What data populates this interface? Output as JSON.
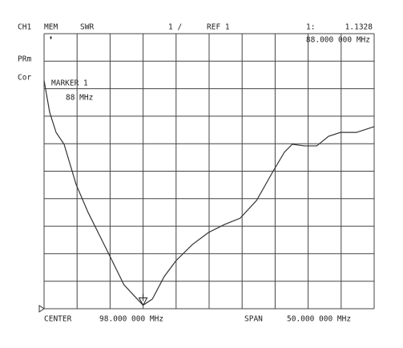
{
  "chart_data": {
    "type": "line",
    "header": {
      "channel": "CH1",
      "mode": "MEM",
      "format": "SWR",
      "scale": "1 /",
      "reference": "REF 1"
    },
    "side_labels": [
      "PRm",
      "Cor"
    ],
    "footer": {
      "center_label": "CENTER",
      "center_value": "98.000 000 MHz",
      "span_label": "SPAN",
      "span_value": "50.000 000 MHz"
    },
    "marker": {
      "number_label": "1:",
      "value": 1.1328,
      "frequency_label": "88.000 000 MHz",
      "name": "MARKER 1",
      "frequency_short": "88 MHz",
      "x": 88
    },
    "x": [
      73.0,
      73.85,
      74.82,
      76.03,
      77.85,
      79.67,
      81.5,
      83.3,
      85.1,
      87.0,
      88.0,
      89.4,
      91.2,
      93.0,
      95.45,
      97.9,
      100.3,
      102.7,
      105.2,
      107.6,
      109.4,
      110.6,
      112.4,
      114.3,
      116.1,
      117.9,
      120.3,
      123.0
    ],
    "series": [
      {
        "color": "#333333",
        "values": [
          9.3,
          8.14,
          7.41,
          6.98,
          5.52,
          4.5,
          3.62,
          2.75,
          1.87,
          1.38,
          1.13,
          1.35,
          2.17,
          2.75,
          3.33,
          3.77,
          4.06,
          4.29,
          4.94,
          5.96,
          6.69,
          6.98,
          6.92,
          6.92,
          7.27,
          7.41,
          7.41,
          7.62
        ]
      }
    ],
    "xlim": [
      73,
      123
    ],
    "ylim": [
      1,
      11
    ],
    "xticks": [
      73,
      78,
      83,
      88,
      93,
      98,
      103,
      108,
      113,
      118,
      123
    ],
    "yticks": [
      1,
      2,
      3,
      4,
      5,
      6,
      7,
      8,
      9,
      10,
      11
    ],
    "grid": true
  }
}
